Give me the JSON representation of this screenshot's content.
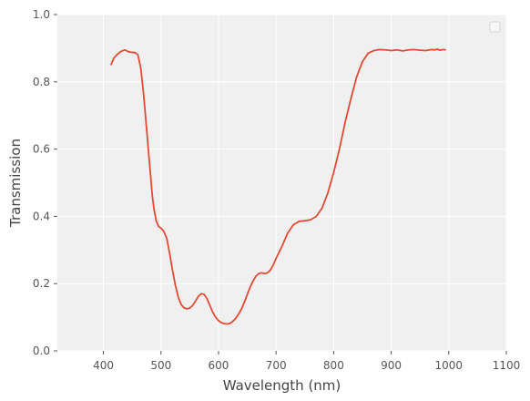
{
  "chart_data": {
    "type": "line",
    "title": "",
    "xlabel": "Wavelength (nm)",
    "ylabel": "Transmission",
    "xlim": [
      320,
      1100
    ],
    "ylim": [
      0.0,
      1.0
    ],
    "xticks": [
      400,
      500,
      600,
      700,
      800,
      900,
      1000,
      1100
    ],
    "yticks": [
      0.0,
      0.2,
      0.4,
      0.6,
      0.8,
      1.0
    ],
    "xtick_labels": [
      "400",
      "500",
      "600",
      "700",
      "800",
      "900",
      "1000",
      "1100"
    ],
    "ytick_labels": [
      "0.0",
      "0.2",
      "0.4",
      "0.6",
      "0.8",
      "1.0"
    ],
    "grid": true,
    "legend": {
      "placement": "top-right",
      "entries": []
    },
    "colors": {
      "series": "#e24a33",
      "plot_bg": "#f0f0f0",
      "grid": "#ffffff"
    },
    "series": [
      {
        "x": [
          413,
          418,
          423,
          430,
          437,
          443,
          448,
          455,
          460,
          465,
          470,
          475,
          480,
          485,
          488,
          492,
          496,
          500,
          505,
          510,
          515,
          520,
          525,
          530,
          535,
          540,
          545,
          550,
          555,
          560,
          565,
          570,
          575,
          580,
          585,
          590,
          595,
          600,
          605,
          610,
          615,
          620,
          625,
          630,
          635,
          640,
          645,
          650,
          655,
          660,
          665,
          670,
          675,
          680,
          685,
          690,
          695,
          700,
          710,
          720,
          730,
          740,
          750,
          760,
          770,
          780,
          790,
          800,
          810,
          820,
          830,
          840,
          850,
          860,
          870,
          880,
          890,
          900,
          910,
          920,
          930,
          940,
          950,
          960,
          970,
          975,
          980,
          985,
          990,
          995
        ],
        "y": [
          0.85,
          0.87,
          0.88,
          0.89,
          0.895,
          0.89,
          0.888,
          0.887,
          0.88,
          0.84,
          0.76,
          0.66,
          0.56,
          0.46,
          0.42,
          0.385,
          0.37,
          0.365,
          0.355,
          0.335,
          0.29,
          0.24,
          0.195,
          0.16,
          0.138,
          0.128,
          0.125,
          0.127,
          0.135,
          0.148,
          0.162,
          0.17,
          0.168,
          0.155,
          0.135,
          0.115,
          0.1,
          0.09,
          0.084,
          0.081,
          0.08,
          0.082,
          0.088,
          0.097,
          0.11,
          0.125,
          0.145,
          0.168,
          0.19,
          0.208,
          0.222,
          0.23,
          0.232,
          0.23,
          0.232,
          0.24,
          0.255,
          0.275,
          0.31,
          0.35,
          0.375,
          0.385,
          0.387,
          0.39,
          0.4,
          0.425,
          0.47,
          0.53,
          0.6,
          0.68,
          0.75,
          0.815,
          0.86,
          0.885,
          0.893,
          0.896,
          0.895,
          0.893,
          0.895,
          0.892,
          0.895,
          0.896,
          0.894,
          0.893,
          0.896,
          0.895,
          0.897,
          0.894,
          0.896,
          0.895
        ]
      }
    ]
  }
}
